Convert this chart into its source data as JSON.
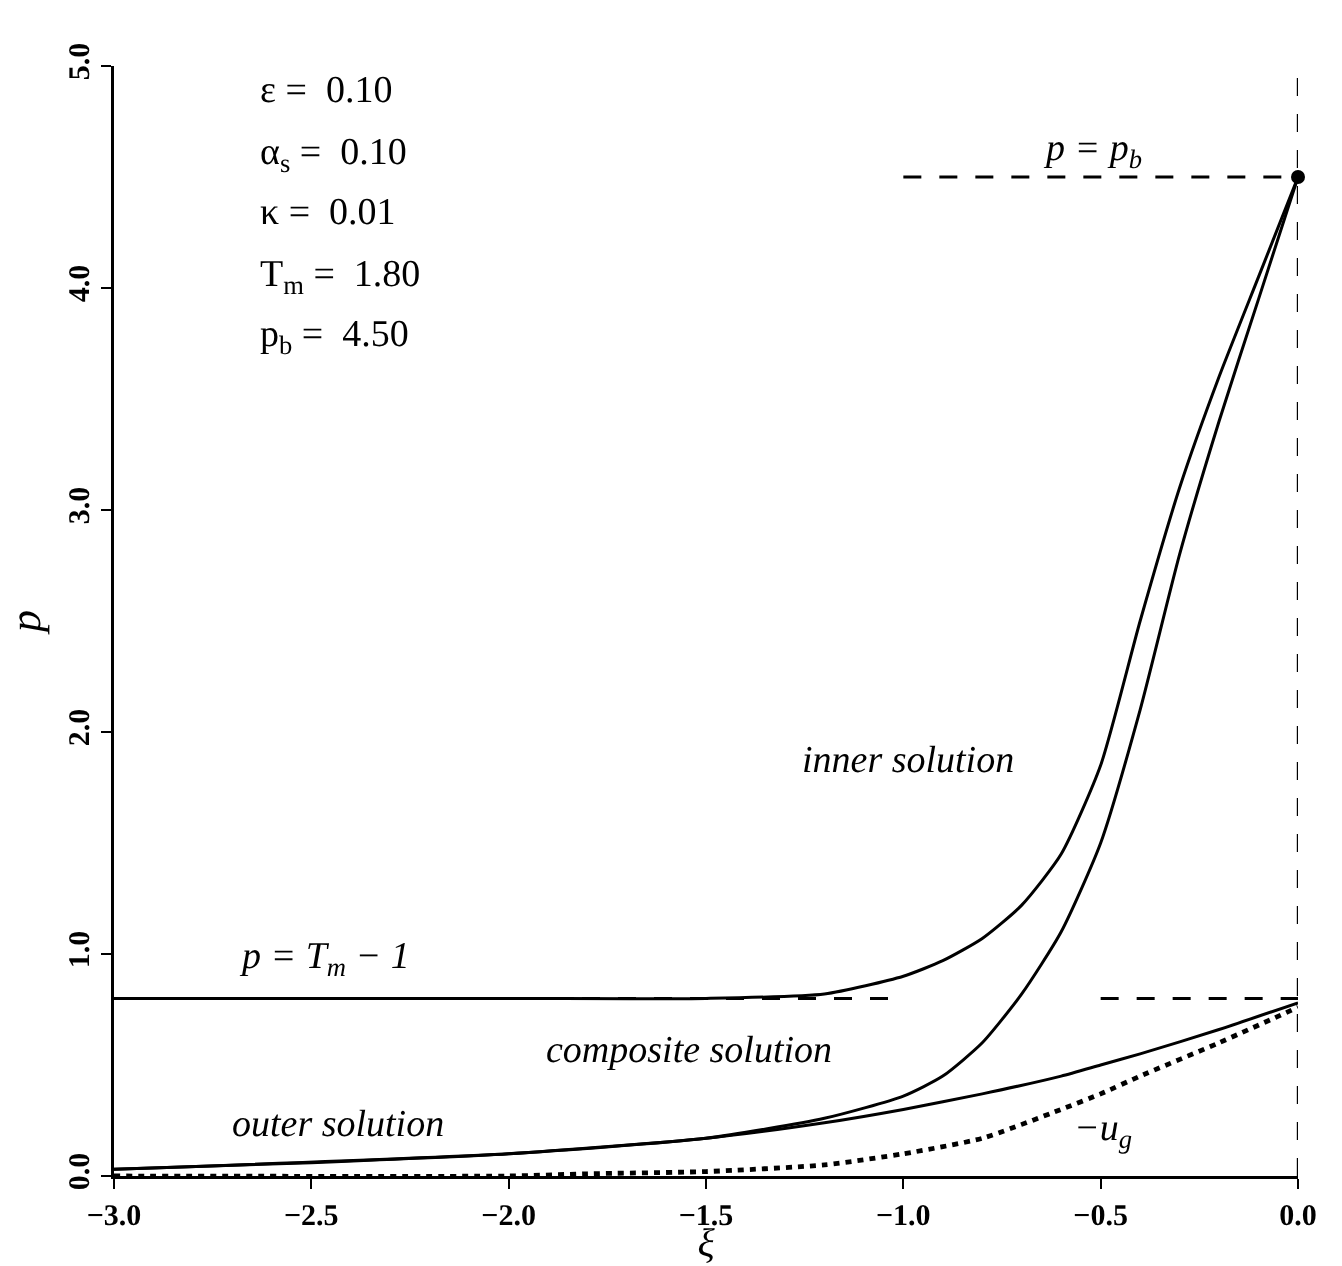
{
  "chart_data": {
    "type": "line",
    "xlabel": "ξ",
    "ylabel": "p",
    "xlim": [
      -3,
      0
    ],
    "ylim": [
      0,
      5
    ],
    "xticks": [
      {
        "value": -3,
        "label": "−3.0"
      },
      {
        "value": -2.5,
        "label": "−2.5"
      },
      {
        "value": -2,
        "label": "−2.0"
      },
      {
        "value": -1.5,
        "label": "−1.5"
      },
      {
        "value": -1,
        "label": "−1.0"
      },
      {
        "value": -0.5,
        "label": "−0.5"
      },
      {
        "value": 0,
        "label": "0.0"
      }
    ],
    "yticks": [
      {
        "value": 0,
        "label": "0.0"
      },
      {
        "value": 1,
        "label": "1.0"
      },
      {
        "value": 2,
        "label": "2.0"
      },
      {
        "value": 3,
        "label": "3.0"
      },
      {
        "value": 4,
        "label": "4.0"
      },
      {
        "value": 5,
        "label": "5.0"
      }
    ],
    "grid": false,
    "marker": "none",
    "line_style": "solid",
    "series": [
      {
        "color": "#000000",
        "x": [
          -3,
          -2,
          -1.5,
          -1.2,
          -1.0,
          -0.9,
          -0.8,
          -0.7,
          -0.6,
          -0.5,
          -0.4,
          -0.3,
          -0.2,
          -0.1,
          0
        ],
        "values": [
          0.8,
          0.8,
          0.8,
          0.82,
          0.9,
          0.97,
          1.07,
          1.22,
          1.45,
          1.85,
          2.5,
          3.1,
          3.6,
          4.05,
          4.5
        ]
      },
      {
        "color": "#000000",
        "x": [
          -3,
          -2.5,
          -2,
          -1.5,
          -1.2,
          -1.0,
          -0.9,
          -0.8,
          -0.7,
          -0.6,
          -0.5,
          -0.4,
          -0.3,
          -0.2,
          -0.1,
          0
        ],
        "values": [
          0.03,
          0.06,
          0.1,
          0.17,
          0.26,
          0.36,
          0.45,
          0.6,
          0.82,
          1.1,
          1.5,
          2.1,
          2.8,
          3.4,
          3.95,
          4.5
        ]
      },
      {
        "color": "#000000",
        "x": [
          -3,
          -2,
          -1.5,
          -1.2,
          -1.0,
          -0.8,
          -0.6,
          -0.5,
          -0.4,
          -0.2,
          0
        ],
        "values": [
          0.03,
          0.1,
          0.17,
          0.24,
          0.3,
          0.37,
          0.45,
          0.5,
          0.55,
          0.66,
          0.78
        ]
      },
      {
        "color": "#000000",
        "line_style": "dotted",
        "x": [
          -3,
          -2,
          -1.8,
          -1.5,
          -1.2,
          -1.0,
          -0.8,
          -0.6,
          -0.5,
          -0.4,
          -0.2,
          0
        ],
        "values": [
          0,
          0,
          0.01,
          0.02,
          0.05,
          0.1,
          0.17,
          0.3,
          0.37,
          0.45,
          0.6,
          0.76
        ]
      },
      {
        "color": "#000000",
        "line_style": "dashed",
        "x": [
          -3,
          -1,
          -0.75,
          -0.5,
          0
        ],
        "values": [
          0.8,
          0.8,
          null,
          0.8,
          0.8
        ]
      },
      {
        "color": "#000000",
        "line_style": "dashed",
        "x": [
          -1,
          0
        ],
        "values": [
          4.5,
          4.5
        ]
      },
      {
        "type": "scatter",
        "color": "#000000",
        "marker": "circle",
        "x": [
          0
        ],
        "values": [
          4.5
        ]
      }
    ],
    "ref_lines": [
      {
        "axis": "x",
        "value": 0,
        "line_style": "dashed",
        "color": "#000000"
      }
    ],
    "annotations": [
      "ε =  0.10",
      "α$_{s}$ =  0.10",
      "κ =  0.01",
      "T$_{m}$ =  1.80",
      "p$_{b}$ =  4.50",
      "inner solution",
      "composite solution",
      "outer solution",
      "−u$_{g}$",
      "p = p$_{b}$",
      "p = T$_{m}$ − 1"
    ]
  }
}
